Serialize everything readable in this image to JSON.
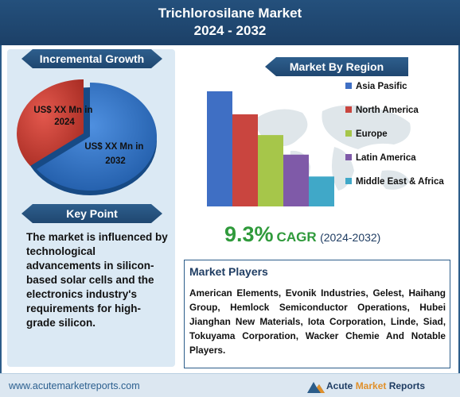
{
  "header": {
    "title_line1": "Trichlorosilane Market",
    "title_line2": "2024 - 2032"
  },
  "incremental_growth": {
    "heading": "Incremental Growth",
    "label_2024": "US$ XX Mn in 2024",
    "label_2032": "US$ XX Mn in 2032",
    "colors": {
      "slice_2024": "#c0392b",
      "slice_2032": "#2a6fc9"
    }
  },
  "key_point": {
    "heading": "Key Point",
    "text": "The market is influenced by technological advancements in silicon-based solar cells and the electronics industry's requirements for high-grade silicon."
  },
  "chart_data": {
    "type": "bar",
    "title": "Market By Region",
    "categories": [
      "Asia Pasific",
      "North America",
      "Europe",
      "Latin America",
      "Middle East & Africa"
    ],
    "values": [
      100,
      80,
      62,
      45,
      26
    ],
    "colors": [
      "#3f6fc4",
      "#c9453f",
      "#a6c64a",
      "#7f5aa8",
      "#40a8c8"
    ],
    "legend_placement": "right",
    "grid": false
  },
  "cagr": {
    "value": "9.3%",
    "label": "CAGR",
    "period": "(2024-2032)"
  },
  "market_players": {
    "heading": "Market Players",
    "text": "American Elements, Evonik Industries, Gelest, Haihang Group, Hemlock Semiconductor Operations, Hubei Jianghan New Materials, Iota Corporation, Linde, Siad, Tokuyama Corporation, Wacker Chemie And Notable Players."
  },
  "footer": {
    "url": "www.acutemarketreports.com",
    "brand_part1": "Acute",
    "brand_part2": "Market",
    "brand_part3": "Reports"
  }
}
